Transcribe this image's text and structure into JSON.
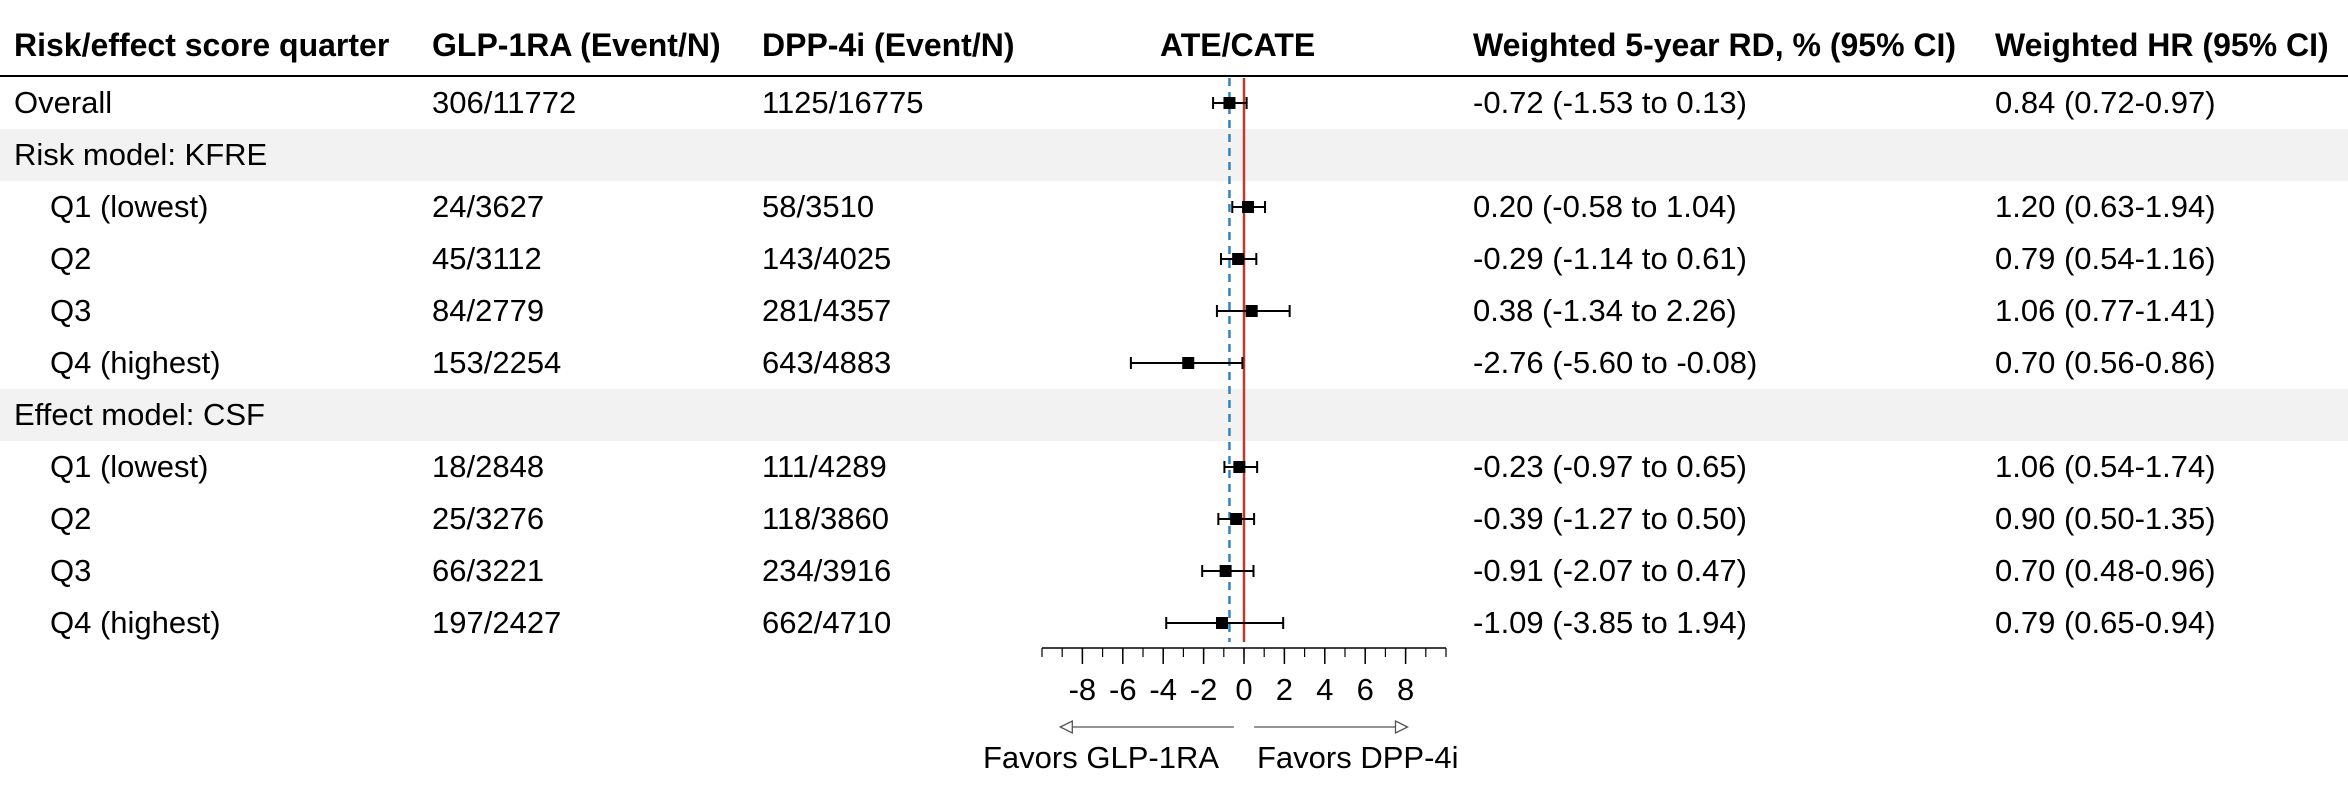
{
  "columns": {
    "label": "Risk/effect score quarter",
    "glp": "GLP-1RA (Event/N)",
    "dpp": "DPP-4i (Event/N)",
    "plot": "ATE/CATE",
    "rd": "Weighted 5-year RD, % (95% CI)",
    "hr": "Weighted HR (95% CI)"
  },
  "rows": [
    {
      "label": "Overall",
      "glp": "306/11772",
      "dpp": "1125/16775",
      "rd": "-0.72 (-1.53 to 0.13)",
      "hr": "0.84 (0.72-0.97)",
      "indent": false,
      "section": false
    },
    {
      "label": "Risk model: KFRE",
      "glp": "",
      "dpp": "",
      "rd": "",
      "hr": "",
      "indent": false,
      "section": true
    },
    {
      "label": "Q1 (lowest)",
      "glp": "24/3627",
      "dpp": "58/3510",
      "rd": "0.20 (-0.58 to 1.04)",
      "hr": "1.20 (0.63-1.94)",
      "indent": true,
      "section": false
    },
    {
      "label": "Q2",
      "glp": "45/3112",
      "dpp": "143/4025",
      "rd": "-0.29 (-1.14 to 0.61)",
      "hr": "0.79 (0.54-1.16)",
      "indent": true,
      "section": false
    },
    {
      "label": "Q3",
      "glp": "84/2779",
      "dpp": "281/4357",
      "rd": "0.38 (-1.34 to 2.26)",
      "hr": "1.06 (0.77-1.41)",
      "indent": true,
      "section": false
    },
    {
      "label": "Q4 (highest)",
      "glp": "153/2254",
      "dpp": "643/4883",
      "rd": "-2.76 (-5.60 to -0.08)",
      "hr": "0.70 (0.56-0.86)",
      "indent": true,
      "section": false
    },
    {
      "label": "Effect model: CSF",
      "glp": "",
      "dpp": "",
      "rd": "",
      "hr": "",
      "indent": false,
      "section": true
    },
    {
      "label": "Q1 (lowest)",
      "glp": "18/2848",
      "dpp": "111/4289",
      "rd": "-0.23 (-0.97 to 0.65)",
      "hr": "1.06 (0.54-1.74)",
      "indent": true,
      "section": false
    },
    {
      "label": "Q2",
      "glp": "25/3276",
      "dpp": "118/3860",
      "rd": "-0.39 (-1.27 to 0.50)",
      "hr": "0.90 (0.50-1.35)",
      "indent": true,
      "section": false
    },
    {
      "label": "Q3",
      "glp": "66/3221",
      "dpp": "234/3916",
      "rd": "-0.91 (-2.07 to 0.47)",
      "hr": "0.70 (0.48-0.96)",
      "indent": true,
      "section": false
    },
    {
      "label": "Q4 (highest)",
      "glp": "197/2427",
      "dpp": "662/4710",
      "rd": "-1.09 (-3.85 to 1.94)",
      "hr": "0.79 (0.65-0.94)",
      "indent": true,
      "section": false
    }
  ],
  "chart_data": {
    "type": "forest",
    "title": "ATE/CATE",
    "xlim": [
      -10,
      10
    ],
    "xticks": [
      -8,
      -6,
      -4,
      -2,
      0,
      2,
      4,
      6,
      8
    ],
    "null_value": 0,
    "overall_estimate": -0.72,
    "points": [
      {
        "row": 0,
        "est": -0.72,
        "lo": -1.53,
        "hi": 0.13
      },
      {
        "row": 2,
        "est": 0.2,
        "lo": -0.58,
        "hi": 1.04
      },
      {
        "row": 3,
        "est": -0.29,
        "lo": -1.14,
        "hi": 0.61
      },
      {
        "row": 4,
        "est": 0.38,
        "lo": -1.34,
        "hi": 2.26
      },
      {
        "row": 5,
        "est": -2.76,
        "lo": -5.6,
        "hi": -0.08
      },
      {
        "row": 7,
        "est": -0.23,
        "lo": -0.97,
        "hi": 0.65
      },
      {
        "row": 8,
        "est": -0.39,
        "lo": -1.27,
        "hi": 0.5
      },
      {
        "row": 9,
        "est": -0.91,
        "lo": -2.07,
        "hi": 0.47
      },
      {
        "row": 10,
        "est": -1.09,
        "lo": -3.85,
        "hi": 1.94
      }
    ],
    "favors_left": "Favors GLP-1RA",
    "favors_right": "Favors DPP-4i",
    "colors": {
      "null_line": "#c0392b",
      "overall_line": "#2e86c1",
      "marker": "#000000"
    }
  }
}
